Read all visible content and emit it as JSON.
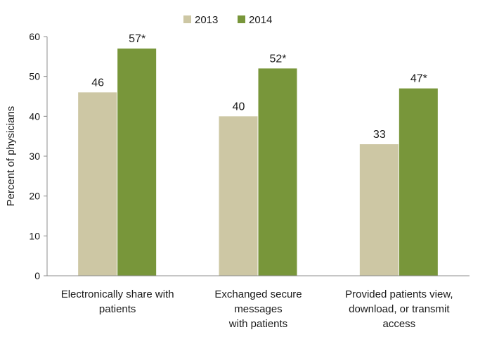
{
  "chart_data": {
    "type": "bar",
    "categories": [
      [
        "Electronically share with",
        "patients"
      ],
      [
        "Exchanged secure",
        "messages",
        "with patients"
      ],
      [
        "Provided patients view,",
        "download, or transmit",
        "access"
      ]
    ],
    "series": [
      {
        "name": "2013",
        "values": [
          46,
          40,
          33
        ],
        "labels": [
          "46",
          "40",
          "33"
        ],
        "color": "#cdc7a4"
      },
      {
        "name": "2014",
        "values": [
          57,
          52,
          47
        ],
        "labels": [
          "57*",
          "52*",
          "47*"
        ],
        "color": "#78963a"
      }
    ],
    "ylabel": "Percent of physicians",
    "ylim": [
      0,
      60
    ],
    "yticks": [
      0,
      10,
      20,
      30,
      40,
      50,
      60
    ],
    "grid": false,
    "legend": "top-center"
  }
}
